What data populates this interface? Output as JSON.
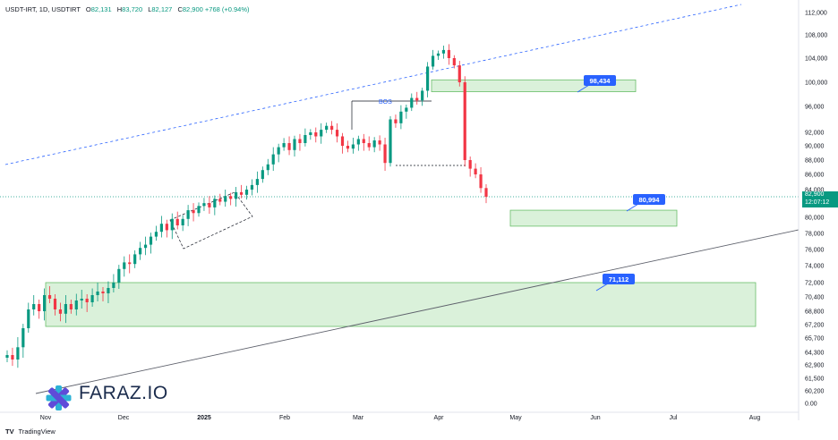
{
  "header": {
    "symbol": "USDT-IRT, 1D, USDTIRT",
    "open_label": "O",
    "open": "82,131",
    "high_label": "H",
    "high": "83,720",
    "low_label": "L",
    "low": "82,127",
    "close_label": "C",
    "close": "82,900",
    "change": "+768 (+0.94%)"
  },
  "last_price": {
    "price": "82,900",
    "countdown": "12:07:12"
  },
  "callouts": {
    "upper": "98,434",
    "middle": "80,994",
    "lower": "71,112"
  },
  "bos_label": "BOS",
  "watermark": "FARAZ.IO",
  "footer": {
    "brand_icon": "TV",
    "brand": "TradingView"
  },
  "colors": {
    "up": "#089981",
    "down": "#F23645",
    "zone_fill": "#d4eed4",
    "zone_stroke": "#6abf6a",
    "callout": "#2962FF"
  },
  "chart_data": {
    "type": "candlestick",
    "y_ticks": [
      "112,000",
      "108,000",
      "104,000",
      "100,000",
      "96,000",
      "92,000",
      "90,000",
      "88,000",
      "86,000",
      "84,000",
      "82,900",
      "80,000",
      "78,000",
      "76,000",
      "74,000",
      "72,000",
      "70,400",
      "68,800",
      "67,200",
      "65,700",
      "64,300",
      "62,900",
      "61,500",
      "60,200",
      "0.00"
    ],
    "x_ticks": [
      "Nov",
      "Dec",
      "2025",
      "Feb",
      "Mar",
      "Apr",
      "May",
      "Jun",
      "Jul",
      "Aug"
    ],
    "zones": [
      {
        "name": "supply",
        "y_top": 100400,
        "y_bottom": 98434,
        "x_start": "Apr",
        "x_end": "Jun"
      },
      {
        "name": "demand-1",
        "y_top": 81000,
        "y_bottom": 78900,
        "x_start": "Apr",
        "x_end": "Jul"
      },
      {
        "name": "demand-2",
        "y_top": 72000,
        "y_bottom": 67000,
        "x_start": "Nov",
        "x_end": "Aug"
      }
    ],
    "close_path": [
      64000,
      63500,
      64800,
      66800,
      69000,
      69600,
      68800,
      70600,
      70200,
      69000,
      68500,
      69600,
      69000,
      70000,
      70200,
      69800,
      70600,
      71000,
      70800,
      71400,
      72000,
      73600,
      74400,
      74200,
      75400,
      76200,
      76600,
      77600,
      78200,
      79200,
      78400,
      79800,
      79000,
      79800,
      81000,
      80600,
      81600,
      82000,
      81400,
      82600,
      82200,
      83000,
      82600,
      83600,
      83200,
      84000,
      84600,
      85400,
      86600,
      87400,
      88800,
      89800,
      90400,
      89400,
      91000,
      90400,
      91600,
      92000,
      91400,
      92400,
      93000,
      92400,
      91400,
      90000,
      89600,
      90200,
      91000,
      90400,
      89800,
      90800,
      90200,
      87600,
      94000,
      93400,
      95200,
      95800,
      97400,
      97000,
      98600,
      102600,
      104400,
      104800,
      105400,
      104000,
      102800,
      100000,
      88000,
      86800,
      86000,
      84200,
      82900
    ]
  }
}
